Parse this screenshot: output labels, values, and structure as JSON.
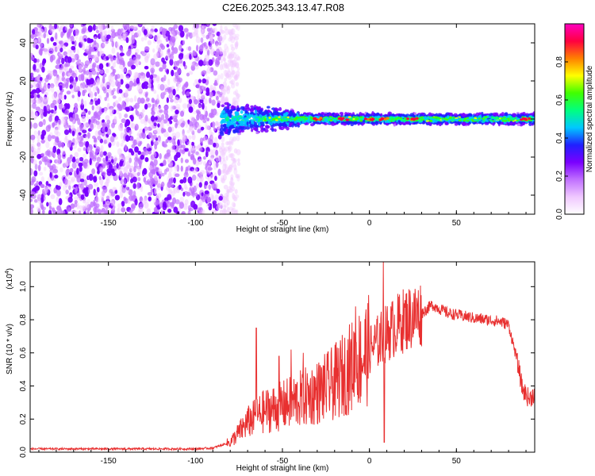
{
  "title": "C2E6.2025.343.13.47.R08",
  "chart_data": [
    {
      "type": "heatmap",
      "name": "spectrogram",
      "xlabel": "Height of straight line (km)",
      "ylabel": "Frequency (Hz)",
      "xlim": [
        -195,
        95
      ],
      "ylim": [
        -50,
        50
      ],
      "xticks": [
        -150,
        -100,
        -50,
        0,
        50
      ],
      "yticks": [
        -40,
        -20,
        0,
        20,
        40
      ],
      "colorbar": {
        "label": "Normalized spectral amplitude",
        "range": [
          0,
          1
        ],
        "ticks": [
          0.0,
          0.2,
          0.4,
          0.6,
          0.8
        ],
        "tick_labels": [
          "0.0",
          "0.2",
          "0.4",
          "0.6",
          "0.8"
        ],
        "colors": [
          "#ffffff",
          "#f0c8ff",
          "#c070ff",
          "#7a00ff",
          "#2020ff",
          "#00c8ff",
          "#00ff80",
          "#40ff00",
          "#ffff00",
          "#ff8000",
          "#ff0040",
          "#ff00c0"
        ]
      },
      "noise_region_x": [
        -195,
        -85
      ],
      "band_center_hz": 0,
      "hotspots_x": [
        -30,
        -15,
        0,
        8,
        25,
        90
      ]
    },
    {
      "type": "line",
      "name": "snr",
      "xlabel": "Height of straight line (km)",
      "ylabel": "SNR (10 * v/v)",
      "y_multiplier": "(x10",
      "y_exponent": "4",
      "y_multiplier_close": ")",
      "xlim": [
        -195,
        95
      ],
      "ylim": [
        0,
        1.15
      ],
      "xticks": [
        -150,
        -100,
        -50,
        0,
        50
      ],
      "yticks": [
        0.0,
        0.2,
        0.4,
        0.6,
        0.8,
        1.0
      ],
      "color": "#e83030",
      "envelope_x": [
        -195,
        -100,
        -90,
        -80,
        -75,
        -70,
        -60,
        -50,
        -40,
        -30,
        -20,
        -10,
        0,
        10,
        20,
        30,
        36,
        45,
        60,
        75,
        80,
        85,
        88,
        92,
        95
      ],
      "envelope_y": [
        0.02,
        0.02,
        0.025,
        0.06,
        0.12,
        0.18,
        0.25,
        0.28,
        0.32,
        0.36,
        0.42,
        0.52,
        0.62,
        0.72,
        0.8,
        0.84,
        0.89,
        0.84,
        0.81,
        0.79,
        0.77,
        0.55,
        0.38,
        0.32,
        0.36
      ],
      "spikes": [
        {
          "x": -65,
          "y": 0.75
        },
        {
          "x": -52,
          "y": 0.58
        },
        {
          "x": -45,
          "y": 0.62
        },
        {
          "x": -38,
          "y": 0.6
        },
        {
          "x": -8,
          "y": 0.88
        },
        {
          "x": 8,
          "y": 1.15
        },
        {
          "x": 8.5,
          "y": 0.06
        }
      ]
    }
  ]
}
